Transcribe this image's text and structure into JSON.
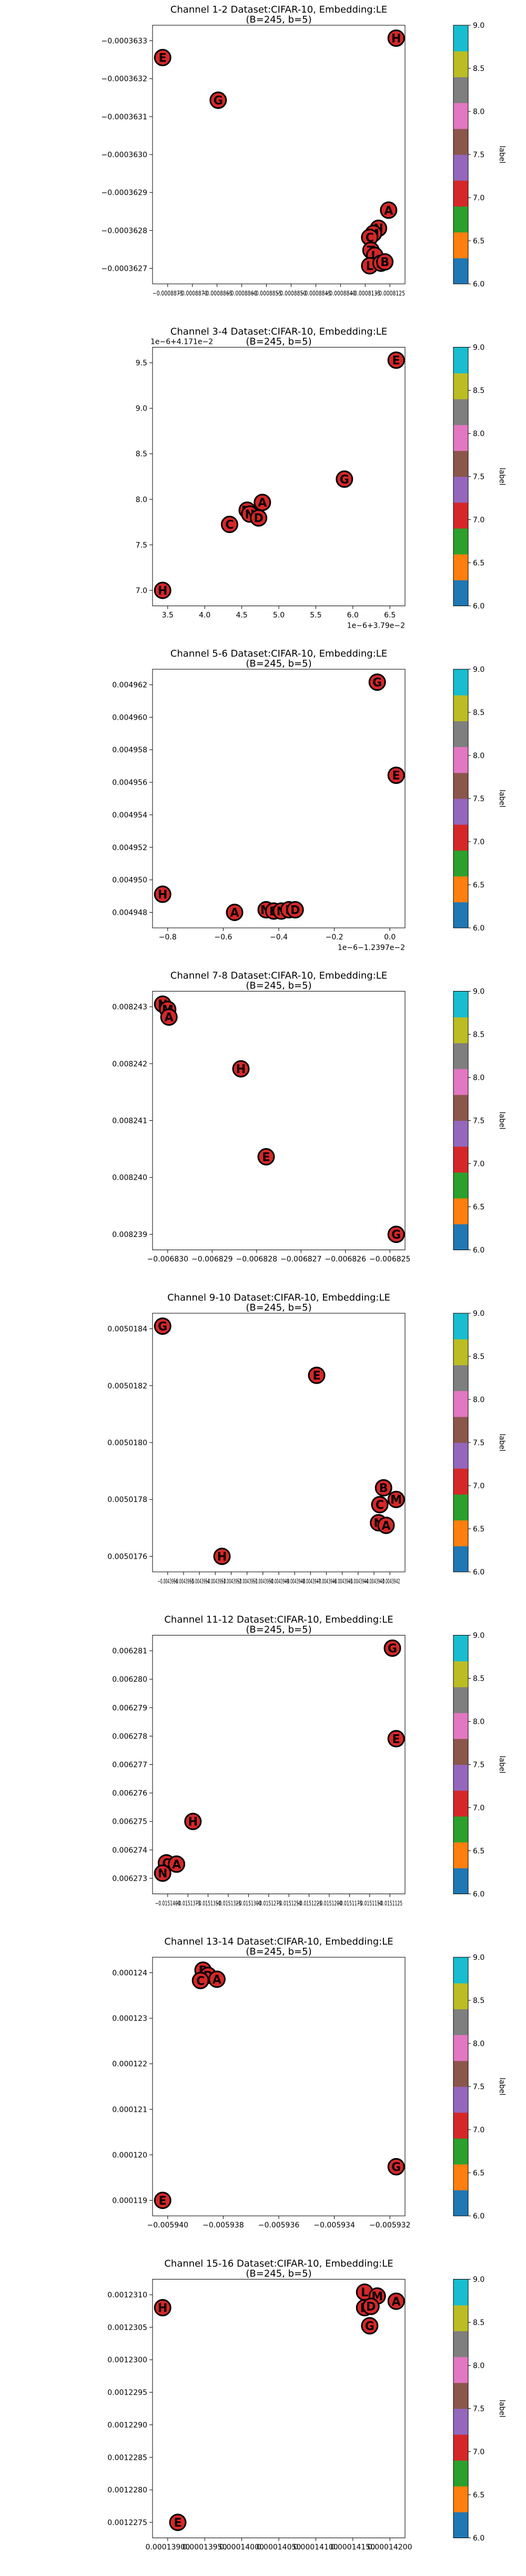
{
  "figure": {
    "colormap": [
      "#1f77b4",
      "#ff7f0e",
      "#2ca02c",
      "#d62728",
      "#9467bd",
      "#8c564b",
      "#e377c2",
      "#7f7f7f",
      "#bcbd22",
      "#17becf"
    ],
    "colorbar_label": "label",
    "colorbar_ticks": [
      "6.0",
      "6.5",
      "7.0",
      "7.5",
      "8.0",
      "8.5",
      "9.0"
    ],
    "point_fill": "#d62728",
    "point_edge": "#000000"
  },
  "chart_data": [
    {
      "type": "scatter",
      "title": "Channel 1-2 Dataset:CIFAR-10, Embedding:LE",
      "subtitle": "(B=245, b=5)",
      "yticks": [
        "−0.0003627",
        "−0.0003628",
        "−0.0003629",
        "−0.0003630",
        "−0.0003631",
        "−0.0003632",
        "−0.0003633"
      ],
      "xticks": [
        "−0.0008875",
        "−0.0008870",
        "−0.0008865",
        "−0.0008860",
        "−0.0008855",
        "−0.0008850",
        "−0.0008845",
        "−0.0008840",
        "−0.0008135",
        "−0.0008125"
      ],
      "y_offset": "",
      "x_offset": "",
      "grid": false,
      "legend": "none",
      "points": [
        {
          "label": "H",
          "x": 0.965,
          "y": 0.95
        },
        {
          "label": "E",
          "x": 0.04,
          "y": 0.875
        },
        {
          "label": "G",
          "x": 0.26,
          "y": 0.71
        },
        {
          "label": "A",
          "x": 0.935,
          "y": 0.285
        },
        {
          "label": "N",
          "x": 0.895,
          "y": 0.215
        },
        {
          "label": "M",
          "x": 0.875,
          "y": 0.195
        },
        {
          "label": "C",
          "x": 0.86,
          "y": 0.18
        },
        {
          "label": "T",
          "x": 0.865,
          "y": 0.13
        },
        {
          "label": "L",
          "x": 0.88,
          "y": 0.11
        },
        {
          "label": "L",
          "x": 0.86,
          "y": 0.07
        },
        {
          "label": "A",
          "x": 0.905,
          "y": 0.08
        },
        {
          "label": "B",
          "x": 0.92,
          "y": 0.085
        }
      ]
    },
    {
      "type": "scatter",
      "title": "Channel 3-4 Dataset:CIFAR-10, Embedding:LE",
      "subtitle": "(B=245, b=5)",
      "yticks": [
        "7.0",
        "7.5",
        "8.0",
        "8.5",
        "9.0",
        "9.5"
      ],
      "xticks": [
        "3.5",
        "4.0",
        "4.5",
        "5.0",
        "5.5",
        "6.0",
        "6.5"
      ],
      "y_offset": "1e−6+4.171e−2",
      "x_offset": "1e−6+3.79e−2",
      "grid": false,
      "legend": "none",
      "points": [
        {
          "label": "E",
          "x": 0.965,
          "y": 0.95
        },
        {
          "label": "G",
          "x": 0.76,
          "y": 0.49
        },
        {
          "label": "A",
          "x": 0.435,
          "y": 0.4
        },
        {
          "label": "M",
          "x": 0.375,
          "y": 0.37
        },
        {
          "label": "N",
          "x": 0.385,
          "y": 0.355
        },
        {
          "label": "D",
          "x": 0.42,
          "y": 0.34
        },
        {
          "label": "C",
          "x": 0.305,
          "y": 0.315
        },
        {
          "label": "H",
          "x": 0.04,
          "y": 0.06
        }
      ]
    },
    {
      "type": "scatter",
      "title": "Channel 5-6 Dataset:CIFAR-10, Embedding:LE",
      "subtitle": "(B=245, b=5)",
      "yticks": [
        "0.004948",
        "0.004950",
        "0.004952",
        "0.004954",
        "0.004956",
        "0.004958",
        "0.004960",
        "0.004962"
      ],
      "xticks": [
        "−0.8",
        "−0.6",
        "−0.4",
        "−0.2",
        "0.0"
      ],
      "y_offset": "",
      "x_offset": "1e−6−1.2397e−2",
      "grid": false,
      "legend": "none",
      "points": [
        {
          "label": "G",
          "x": 0.89,
          "y": 0.95
        },
        {
          "label": "E",
          "x": 0.965,
          "y": 0.59
        },
        {
          "label": "H",
          "x": 0.04,
          "y": 0.13
        },
        {
          "label": "A",
          "x": 0.325,
          "y": 0.06
        },
        {
          "label": "M",
          "x": 0.45,
          "y": 0.07
        },
        {
          "label": "B",
          "x": 0.48,
          "y": 0.065
        },
        {
          "label": "N",
          "x": 0.51,
          "y": 0.065
        },
        {
          "label": "L",
          "x": 0.54,
          "y": 0.07
        },
        {
          "label": "D",
          "x": 0.565,
          "y": 0.07
        }
      ]
    },
    {
      "type": "scatter",
      "title": "Channel 7-8 Dataset:CIFAR-10, Embedding:LE",
      "subtitle": "(B=245, b=5)",
      "yticks": [
        "0.008239",
        "0.008240",
        "0.008241",
        "0.008242",
        "0.008243"
      ],
      "xticks": [
        "−0.006830",
        "−0.006829",
        "−0.006828",
        "−0.006827",
        "−0.006826",
        "−0.006825"
      ],
      "y_offset": "",
      "x_offset": "",
      "grid": false,
      "legend": "none",
      "points": [
        {
          "label": "N",
          "x": 0.04,
          "y": 0.95
        },
        {
          "label": "M",
          "x": 0.06,
          "y": 0.93
        },
        {
          "label": "A",
          "x": 0.065,
          "y": 0.9
        },
        {
          "label": "H",
          "x": 0.35,
          "y": 0.7
        },
        {
          "label": "E",
          "x": 0.45,
          "y": 0.36
        },
        {
          "label": "G",
          "x": 0.965,
          "y": 0.06
        }
      ]
    },
    {
      "type": "scatter",
      "title": "Channel 9-10 Dataset:CIFAR-10, Embedding:LE",
      "subtitle": "(B=245, b=5)",
      "yticks": [
        "0.0050176",
        "0.0050178",
        "0.0050180",
        "0.0050182",
        "0.0050184"
      ],
      "xticks": [
        "−0.0043956",
        "−0.0043955",
        "−0.0043954",
        "−0.0043953",
        "−0.0043952",
        "−0.0043951",
        "−0.0043950",
        "−0.0043949",
        "−0.0043948",
        "−0.0043947",
        "−0.0043946",
        "−0.0043945",
        "−0.0043944",
        "−0.0043943",
        "−0.0043942"
      ],
      "y_offset": "",
      "x_offset": "",
      "grid": false,
      "legend": "none",
      "points": [
        {
          "label": "G",
          "x": 0.04,
          "y": 0.95
        },
        {
          "label": "E",
          "x": 0.65,
          "y": 0.76
        },
        {
          "label": "B",
          "x": 0.915,
          "y": 0.325
        },
        {
          "label": "M",
          "x": 0.965,
          "y": 0.28
        },
        {
          "label": "C",
          "x": 0.9,
          "y": 0.26
        },
        {
          "label": "N",
          "x": 0.895,
          "y": 0.19
        },
        {
          "label": "A",
          "x": 0.925,
          "y": 0.18
        },
        {
          "label": "H",
          "x": 0.275,
          "y": 0.06
        }
      ]
    },
    {
      "type": "scatter",
      "title": "Channel 11-12 Dataset:CIFAR-10, Embedding:LE",
      "subtitle": "(B=245, b=5)",
      "yticks": [
        "0.006273",
        "0.006274",
        "0.006275",
        "0.006276",
        "0.006277",
        "0.006278",
        "0.006279",
        "0.006280",
        "0.006281"
      ],
      "xticks": [
        "−0.0151400",
        "−0.0151375",
        "−0.0151350",
        "−0.0151325",
        "−0.0151300",
        "−0.0151275",
        "−0.0151250",
        "−0.0151225",
        "−0.0151200",
        "−0.0151175",
        "−0.0151150",
        "−0.0151125"
      ],
      "y_offset": "",
      "x_offset": "",
      "grid": false,
      "legend": "none",
      "points": [
        {
          "label": "G",
          "x": 0.95,
          "y": 0.95
        },
        {
          "label": "E",
          "x": 0.965,
          "y": 0.6
        },
        {
          "label": "H",
          "x": 0.16,
          "y": 0.28
        },
        {
          "label": "C",
          "x": 0.055,
          "y": 0.12
        },
        {
          "label": "A",
          "x": 0.095,
          "y": 0.115
        },
        {
          "label": "N",
          "x": 0.04,
          "y": 0.08
        }
      ]
    },
    {
      "type": "scatter",
      "title": "Channel 13-14 Dataset:CIFAR-10, Embedding:LE",
      "subtitle": "(B=245, b=5)",
      "yticks": [
        "0.000119",
        "0.000120",
        "0.000121",
        "0.000122",
        "0.000123",
        "0.000124"
      ],
      "xticks": [
        "−0.005940",
        "−0.005938",
        "−0.005936",
        "−0.005934",
        "−0.005932"
      ],
      "y_offset": "",
      "x_offset": "",
      "grid": false,
      "legend": "none",
      "points": [
        {
          "label": "B",
          "x": 0.2,
          "y": 0.95
        },
        {
          "label": "D",
          "x": 0.22,
          "y": 0.93
        },
        {
          "label": "C",
          "x": 0.19,
          "y": 0.91
        },
        {
          "label": "A",
          "x": 0.255,
          "y": 0.915
        },
        {
          "label": "G",
          "x": 0.965,
          "y": 0.19
        },
        {
          "label": "E",
          "x": 0.04,
          "y": 0.06
        }
      ]
    },
    {
      "type": "scatter",
      "title": "Channel 15-16 Dataset:CIFAR-10, Embedding:LE",
      "subtitle": "(B=245, b=5)",
      "yticks": [
        "0.0012275",
        "0.0012280",
        "0.0012285",
        "0.0012290",
        "0.0012295",
        "0.0012300",
        "0.0012305",
        "0.0012310"
      ],
      "xticks": [
        "0.00013900",
        "0.00013950",
        "0.00014000",
        "0.00014050",
        "0.00014100",
        "0.00014150",
        "0.00014200"
      ],
      "y_offset": "",
      "x_offset": "",
      "grid": false,
      "legend": "none",
      "points": [
        {
          "label": "L",
          "x": 0.84,
          "y": 0.95
        },
        {
          "label": "M",
          "x": 0.89,
          "y": 0.935
        },
        {
          "label": "A",
          "x": 0.965,
          "y": 0.915
        },
        {
          "label": "H",
          "x": 0.04,
          "y": 0.89
        },
        {
          "label": "B",
          "x": 0.84,
          "y": 0.89
        },
        {
          "label": "D",
          "x": 0.865,
          "y": 0.895
        },
        {
          "label": "G",
          "x": 0.86,
          "y": 0.82
        },
        {
          "label": "E",
          "x": 0.1,
          "y": 0.06
        }
      ]
    }
  ]
}
